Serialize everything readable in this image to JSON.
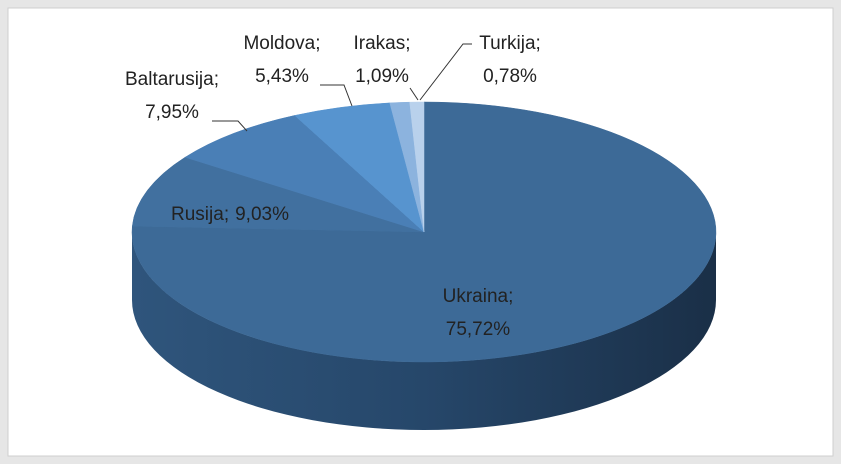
{
  "chart_data": {
    "type": "pie3d",
    "categories": [
      "Ukraina;",
      "Rusija;",
      "Baltarusija;",
      "Moldova;",
      "Irakas;",
      "Turkija;"
    ],
    "values": [
      75.72,
      9.03,
      7.95,
      5.43,
      1.09,
      0.78
    ],
    "value_labels": [
      "75,72%",
      "9,03%",
      "7,95%",
      "5,43%",
      "1,09%",
      "0,78%"
    ],
    "colors": [
      "#3d6a97",
      "#41709f",
      "#4a7fb6",
      "#5794cf",
      "#8cb3de",
      "#b9d1ec"
    ]
  }
}
